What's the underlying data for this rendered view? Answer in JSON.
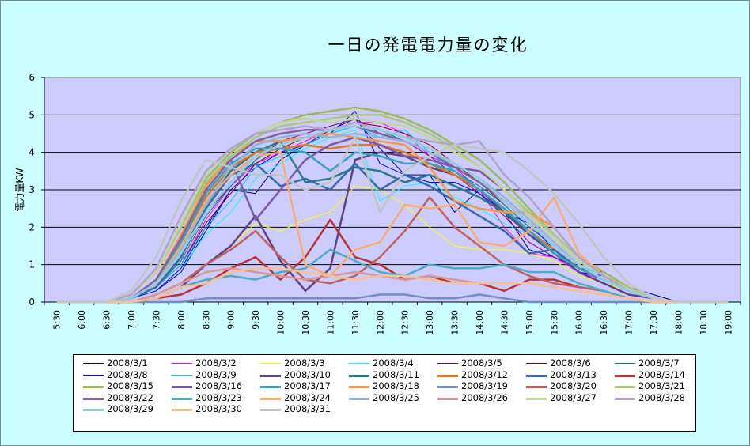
{
  "chart_data": {
    "type": "line",
    "title": "一日の発電電力量の変化",
    "ylabel": "電力量KW",
    "xlabel": "",
    "ylim": [
      0,
      6
    ],
    "yticks": [
      "0",
      "1",
      "2",
      "3",
      "4",
      "5",
      "6"
    ],
    "grid": true,
    "legend_position": "bottom",
    "categories": [
      "5:30",
      "6:00",
      "6:30",
      "7:00",
      "7:30",
      "8:00",
      "8:30",
      "9:00",
      "9:30",
      "10:00",
      "10:30",
      "11:00",
      "11:30",
      "12:00",
      "12:30",
      "13:00",
      "13:30",
      "14:00",
      "14:30",
      "15:00",
      "15:30",
      "16:00",
      "16:30",
      "17:00",
      "17:30",
      "18:00",
      "18:30",
      "19:00"
    ],
    "series": [
      {
        "name": "2008/3/1",
        "color": "#000080",
        "width": 1,
        "values": [
          0,
          0,
          0,
          0.1,
          0.3,
          0.8,
          1.9,
          3.0,
          2.9,
          3.8,
          4.2,
          4.6,
          4.9,
          4.1,
          3.4,
          3.4,
          2.4,
          3.0,
          2.4,
          1.4,
          1.2,
          0.9,
          0.8,
          0.4,
          0.2,
          0,
          0,
          0
        ]
      },
      {
        "name": "2008/3/2",
        "color": "#ff00ff",
        "width": 1,
        "values": [
          0,
          0,
          0,
          0.1,
          0.4,
          1.0,
          2.2,
          3.1,
          3.7,
          4.0,
          4.3,
          4.6,
          4.8,
          4.8,
          4.5,
          3.9,
          3.6,
          3.0,
          2.0,
          1.3,
          1.2,
          0.8,
          0.6,
          0.3,
          0.1,
          0,
          0,
          0
        ]
      },
      {
        "name": "2008/3/3",
        "color": "#ffff00",
        "width": 1,
        "values": [
          0,
          0,
          0,
          0,
          0.2,
          0.5,
          1.0,
          1.5,
          2.1,
          1.9,
          2.2,
          2.4,
          3.1,
          3.0,
          2.6,
          2.0,
          1.5,
          1.4,
          1.4,
          1.3,
          1.1,
          0.7,
          0.5,
          0.3,
          0.1,
          0,
          0,
          0
        ]
      },
      {
        "name": "2008/3/4",
        "color": "#00ffff",
        "width": 1,
        "values": [
          0,
          0,
          0,
          0.1,
          0.3,
          0.9,
          1.8,
          2.4,
          3.3,
          3.7,
          4.1,
          4.4,
          4.6,
          2.7,
          3.1,
          3.2,
          2.8,
          2.5,
          2.1,
          1.8,
          1.5,
          1.0,
          0.7,
          0.4,
          0.1,
          0,
          0,
          0
        ]
      },
      {
        "name": "2008/3/5",
        "color": "#800080",
        "width": 1,
        "values": [
          0,
          0,
          0,
          0.1,
          0.4,
          1.2,
          2.4,
          3.1,
          3.8,
          4.3,
          4.5,
          4.7,
          4.9,
          4.5,
          4.3,
          3.9,
          3.4,
          2.9,
          2.3,
          1.6,
          1.2,
          0.9,
          0.6,
          0.3,
          0.1,
          0,
          0,
          0
        ]
      },
      {
        "name": "2008/3/6",
        "color": "#800000",
        "width": 1,
        "values": [
          0,
          0,
          0,
          0.1,
          0.4,
          1.0,
          2.1,
          2.9,
          3.7,
          4.1,
          4.4,
          4.6,
          4.8,
          4.7,
          4.5,
          4.2,
          3.7,
          3.2,
          2.6,
          2.0,
          1.5,
          1.0,
          0.6,
          0.3,
          0.1,
          0,
          0,
          0
        ]
      },
      {
        "name": "2008/3/7",
        "color": "#008080",
        "width": 1,
        "values": [
          0,
          0,
          0,
          0.1,
          0.4,
          1.1,
          2.3,
          3.1,
          3.8,
          4.2,
          4.4,
          4.5,
          4.7,
          4.6,
          4.3,
          4.0,
          3.5,
          3.1,
          2.6,
          2.0,
          1.5,
          1.0,
          0.6,
          0.3,
          0.1,
          0,
          0,
          0
        ]
      },
      {
        "name": "2008/3/8",
        "color": "#0000ff",
        "width": 1,
        "values": [
          0,
          0,
          0,
          0.1,
          0.3,
          0.9,
          2.0,
          3.0,
          3.6,
          4.0,
          4.2,
          4.5,
          5.1,
          3.7,
          3.4,
          3.2,
          3.2,
          2.9,
          2.4,
          2.1,
          1.4,
          0.8,
          0.7,
          0.4,
          0.1,
          0,
          0,
          0
        ]
      },
      {
        "name": "2008/3/9",
        "color": "#00ccff",
        "width": 1,
        "values": [
          0,
          0,
          0,
          0.1,
          0.4,
          1.0,
          2.0,
          2.7,
          3.6,
          3.9,
          4.2,
          4.5,
          4.7,
          4.4,
          4.6,
          4.0,
          3.5,
          3.0,
          2.4,
          1.8,
          1.3,
          0.9,
          0.6,
          0.3,
          0.1,
          0,
          0,
          0
        ]
      },
      {
        "name": "2008/3/10",
        "color": "#604080",
        "width": 2.5,
        "values": [
          0,
          0,
          0,
          0,
          0.1,
          0.4,
          1.0,
          1.5,
          2.3,
          1.1,
          0.3,
          0.9,
          3.8,
          4.0,
          3.9,
          3.6,
          3.4,
          3.0,
          2.4,
          1.8,
          1.3,
          0.8,
          0.5,
          0.2,
          0.1,
          0,
          0,
          0
        ]
      },
      {
        "name": "2008/3/11",
        "color": "#2a7a8a",
        "width": 2.5,
        "values": [
          0,
          0,
          0,
          0.1,
          0.4,
          1.2,
          2.6,
          3.5,
          4.0,
          4.3,
          3.2,
          3.3,
          3.6,
          3.5,
          3.2,
          3.4,
          3.1,
          2.8,
          2.4,
          1.9,
          1.4,
          0.9,
          0.6,
          0.3,
          0.1,
          0,
          0,
          0
        ]
      },
      {
        "name": "2008/3/12",
        "color": "#e07820",
        "width": 2.5,
        "values": [
          0,
          0,
          0,
          0.1,
          0.5,
          1.5,
          2.8,
          3.6,
          4.0,
          4.1,
          4.2,
          4.1,
          4.2,
          4.2,
          4.0,
          3.7,
          3.4,
          3.0,
          2.5,
          1.9,
          1.4,
          0.9,
          0.6,
          0.3,
          0.1,
          0,
          0,
          0
        ]
      },
      {
        "name": "2008/3/13",
        "color": "#3a6aa8",
        "width": 2.5,
        "values": [
          0,
          0,
          0,
          0.1,
          0.4,
          1.2,
          2.5,
          3.4,
          3.7,
          3.1,
          3.3,
          3.0,
          3.7,
          3.0,
          3.4,
          3.1,
          2.7,
          2.3,
          1.9,
          1.3,
          1.4,
          0.9,
          0.6,
          0.3,
          0.1,
          0,
          0,
          0
        ]
      },
      {
        "name": "2008/3/14",
        "color": "#b83232",
        "width": 2.5,
        "values": [
          0,
          0,
          0,
          0,
          0.1,
          0.2,
          0.5,
          0.9,
          1.2,
          0.6,
          1.2,
          2.2,
          1.2,
          1.0,
          0.6,
          0.7,
          0.5,
          0.5,
          0.3,
          0.6,
          0.6,
          0.4,
          0.3,
          0.1,
          0,
          0,
          0,
          0
        ]
      },
      {
        "name": "2008/3/15",
        "color": "#9bbb59",
        "width": 2.5,
        "values": [
          0,
          0,
          0,
          0.2,
          0.8,
          2.0,
          3.3,
          4.0,
          4.5,
          4.8,
          5.0,
          5.1,
          5.2,
          5.1,
          4.9,
          4.6,
          4.2,
          3.8,
          3.2,
          2.5,
          1.8,
          1.2,
          0.8,
          0.4,
          0.1,
          0,
          0,
          0
        ]
      },
      {
        "name": "2008/3/16",
        "color": "#7a5aa8",
        "width": 2.5,
        "values": [
          0,
          0,
          0,
          0.1,
          0.5,
          1.4,
          3.2,
          3.8,
          2.2,
          3.0,
          3.8,
          4.2,
          4.4,
          4.2,
          3.9,
          3.8,
          3.6,
          3.5,
          3.0,
          2.3,
          1.7,
          1.1,
          0.7,
          0.3,
          0.1,
          0,
          0,
          0
        ]
      },
      {
        "name": "2008/3/17",
        "color": "#3aa0c0",
        "width": 2.5,
        "values": [
          0,
          0,
          0,
          0.1,
          0.5,
          1.6,
          2.9,
          3.7,
          4.1,
          4.1,
          4.0,
          3.5,
          4.0,
          3.9,
          3.7,
          3.7,
          3.5,
          3.0,
          2.5,
          1.9,
          1.3,
          0.9,
          0.6,
          0.3,
          0.1,
          0,
          0,
          0
        ]
      },
      {
        "name": "2008/3/18",
        "color": "#f79646",
        "width": 2.5,
        "values": [
          0,
          0,
          0,
          0.1,
          0.6,
          1.8,
          3.1,
          3.9,
          4.3,
          4.3,
          4.4,
          4.5,
          4.4,
          4.3,
          4.2,
          3.6,
          2.7,
          2.5,
          2.4,
          2.4,
          2.0,
          1.2,
          0.7,
          0.3,
          0.1,
          0,
          0,
          0
        ]
      },
      {
        "name": "2008/3/19",
        "color": "#6f8ec6",
        "width": 2.5,
        "values": [
          0,
          0,
          0,
          0,
          0,
          0,
          0.1,
          0.1,
          0.1,
          0.1,
          0.1,
          0.1,
          0.1,
          0.2,
          0.2,
          0.1,
          0.1,
          0.2,
          0.1,
          0,
          0,
          0,
          0,
          0,
          0,
          0,
          0,
          0
        ]
      },
      {
        "name": "2008/3/20",
        "color": "#c0605a",
        "width": 2.5,
        "values": [
          0,
          0,
          0,
          0,
          0.2,
          0.5,
          1.0,
          1.4,
          1.9,
          1.2,
          0.6,
          0.5,
          0.7,
          1.2,
          1.9,
          2.8,
          2.0,
          1.5,
          1.0,
          0.7,
          0.5,
          0.4,
          0.3,
          0.1,
          0,
          0,
          0,
          0
        ]
      },
      {
        "name": "2008/3/21",
        "color": "#aac87a",
        "width": 2.5,
        "values": [
          0,
          0,
          0,
          0.2,
          0.8,
          2.0,
          3.2,
          3.9,
          4.4,
          4.7,
          4.8,
          4.9,
          5.0,
          5.0,
          4.8,
          4.5,
          4.1,
          3.6,
          3.0,
          2.4,
          1.8,
          1.2,
          0.7,
          0.4,
          0.1,
          0,
          0,
          0
        ]
      },
      {
        "name": "2008/3/22",
        "color": "#8064a2",
        "width": 2.5,
        "values": [
          0,
          0,
          0,
          0.1,
          0.6,
          1.7,
          3.0,
          3.8,
          4.3,
          4.5,
          4.6,
          4.6,
          4.7,
          4.5,
          4.3,
          4.0,
          3.6,
          3.2,
          2.7,
          2.1,
          1.5,
          1.0,
          0.6,
          0.3,
          0.1,
          0,
          0,
          0
        ]
      },
      {
        "name": "2008/3/23",
        "color": "#4bacc6",
        "width": 2.5,
        "values": [
          0,
          0,
          0,
          0,
          0.1,
          0.4,
          0.6,
          0.7,
          0.6,
          0.8,
          0.9,
          1.4,
          1.1,
          0.8,
          0.7,
          1.0,
          0.9,
          0.9,
          1.0,
          0.8,
          0.8,
          0.5,
          0.3,
          0.1,
          0,
          0,
          0,
          0
        ]
      },
      {
        "name": "2008/3/24",
        "color": "#f9ac70",
        "width": 2.5,
        "values": [
          0,
          0,
          0,
          0.1,
          0.5,
          1.5,
          2.7,
          3.4,
          3.9,
          4.0,
          1.0,
          0.7,
          1.4,
          1.6,
          2.6,
          2.5,
          2.6,
          1.6,
          1.5,
          1.9,
          2.8,
          1.3,
          0.7,
          0.3,
          0.1,
          0,
          0,
          0
        ]
      },
      {
        "name": "2008/3/25",
        "color": "#95b3d7",
        "width": 2.5,
        "values": [
          0,
          0,
          0,
          0.1,
          0.5,
          1.4,
          2.6,
          3.6,
          4.2,
          4.4,
          4.5,
          4.4,
          4.5,
          4.4,
          4.3,
          4.0,
          3.7,
          3.3,
          2.8,
          2.2,
          1.6,
          1.0,
          0.6,
          0.3,
          0.1,
          0,
          0,
          0
        ]
      },
      {
        "name": "2008/3/26",
        "color": "#d99694",
        "width": 2.5,
        "values": [
          0,
          0,
          0,
          0,
          0.2,
          0.5,
          0.8,
          0.9,
          0.8,
          0.7,
          0.6,
          0.7,
          0.8,
          0.7,
          0.6,
          0.7,
          0.6,
          0.5,
          0.5,
          0.5,
          0.4,
          0.3,
          0.2,
          0.1,
          0,
          0,
          0,
          0
        ]
      },
      {
        "name": "2008/3/27",
        "color": "#c3d69b",
        "width": 2.5,
        "values": [
          0,
          0,
          0,
          0.2,
          0.8,
          2.1,
          3.4,
          4.1,
          4.5,
          4.8,
          4.9,
          4.8,
          4.9,
          4.8,
          4.7,
          4.4,
          4.0,
          3.6,
          3.0,
          2.3,
          1.7,
          1.1,
          0.7,
          0.3,
          0.1,
          0,
          0,
          0
        ]
      },
      {
        "name": "2008/3/28",
        "color": "#b2a2c7",
        "width": 2.5,
        "values": [
          0,
          0,
          0,
          0.2,
          0.9,
          2.3,
          3.5,
          4.1,
          4.5,
          4.6,
          4.7,
          4.6,
          4.8,
          4.6,
          4.4,
          4.3,
          4.2,
          4.3,
          3.4,
          2.8,
          2.0,
          1.2,
          0.7,
          0.3,
          0.1,
          0,
          0,
          0
        ]
      },
      {
        "name": "2008/3/29",
        "color": "#93cddd",
        "width": 2.5,
        "values": [
          0,
          0,
          0,
          0.1,
          0.5,
          1.3,
          2.4,
          3.2,
          3.9,
          4.2,
          4.4,
          4.6,
          4.7,
          4.6,
          4.4,
          4.1,
          3.7,
          3.3,
          2.7,
          2.1,
          1.5,
          1.0,
          0.6,
          0.3,
          0.1,
          0,
          0,
          0
        ]
      },
      {
        "name": "2008/3/30",
        "color": "#fac090",
        "width": 2.5,
        "values": [
          0,
          0,
          0,
          0,
          0.1,
          0.4,
          0.5,
          0.8,
          0.9,
          0.9,
          0.8,
          0.7,
          0.6,
          0.7,
          0.7,
          0.6,
          0.5,
          0.5,
          0.5,
          0.5,
          0.4,
          0.3,
          0.2,
          0.1,
          0,
          0,
          0,
          0
        ]
      },
      {
        "name": "2008/3/31",
        "color": "#c4c4c4",
        "width": 2.5,
        "values": [
          0,
          0,
          0,
          0.3,
          1.2,
          2.7,
          3.8,
          3.6,
          3.4,
          3.4,
          3.0,
          3.2,
          4.4,
          2.4,
          3.5,
          3.9,
          4.2,
          4.1,
          4.0,
          3.5,
          2.9,
          2.1,
          1.2,
          0.5,
          0.1,
          0,
          0,
          0
        ]
      }
    ]
  }
}
